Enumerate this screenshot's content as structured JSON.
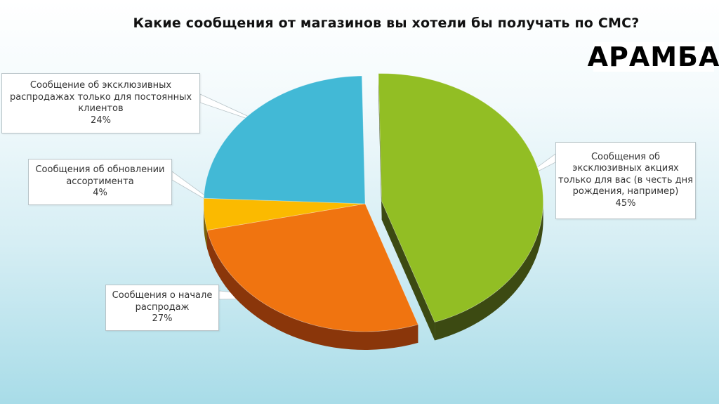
{
  "header": {
    "title": "Какие сообщения от магазинов вы хотели бы получать по СМС?"
  },
  "brand": {
    "logo_text": "АРАМБА"
  },
  "chart_data": {
    "type": "pie",
    "title": "Какие сообщения от магазинов вы хотели бы получать по СМС?",
    "slices": [
      {
        "label": "Сообщения об эксклюзивных акциях только для вас (в честь дня рождения, например)",
        "value": 45,
        "value_label": "45%",
        "color": "#92be24",
        "side_color": "#3c4a12",
        "exploded": true
      },
      {
        "label": "Сообщения о начале распродаж",
        "value": 27,
        "value_label": "27%",
        "color": "#f07410",
        "side_color": "#8a360a",
        "exploded": false
      },
      {
        "label": "Сообщения об обновлении ассортимента",
        "value": 4,
        "value_label": "4%",
        "color": "#fbba00",
        "side_color": "#7a5f08",
        "exploded": false
      },
      {
        "label": "Сообщение об эксклюзивных распродажах только для постоянных клиентов",
        "value": 24,
        "value_label": "24%",
        "color": "#42b9d6",
        "side_color": "#1a5666",
        "exploded": false
      }
    ],
    "legend": "none"
  }
}
